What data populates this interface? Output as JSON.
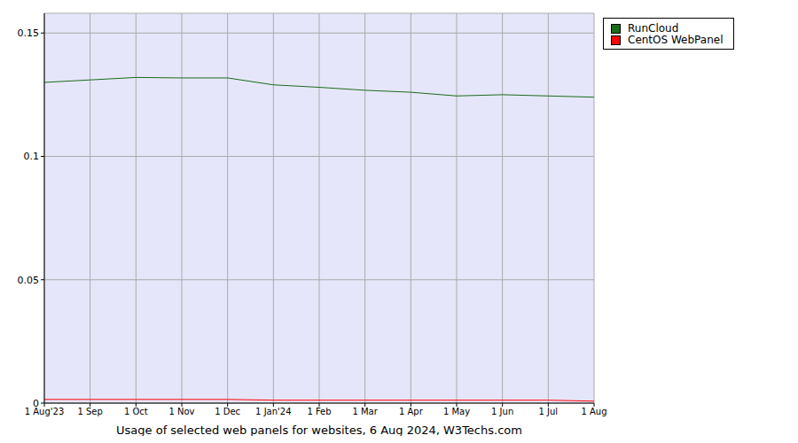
{
  "chart_data": {
    "type": "line",
    "title": "Usage of selected web panels for websites, 6 Aug 2024, W3Techs.com",
    "categories": [
      "1 Aug'23",
      "1 Sep",
      "1 Oct",
      "1 Nov",
      "1 Dec",
      "1 Jan'24",
      "1 Feb",
      "1 Mar",
      "1 Apr",
      "1 May",
      "1 Jun",
      "1 Jul",
      "1 Aug"
    ],
    "series": [
      {
        "name": "RunCloud",
        "color": "#1a6b1a",
        "values": [
          0.13,
          0.131,
          0.132,
          0.1318,
          0.1318,
          0.129,
          0.128,
          0.1268,
          0.126,
          0.1245,
          0.125,
          0.1245,
          0.124
        ]
      },
      {
        "name": "CentOS WebPanel",
        "color": "#ff0000",
        "values": [
          0.0015,
          0.0015,
          0.0015,
          0.0015,
          0.0015,
          0.0012,
          0.0012,
          0.0012,
          0.0012,
          0.0012,
          0.0012,
          0.0012,
          0.0008
        ]
      }
    ],
    "ylim": [
      0,
      0.158
    ],
    "yticks": [
      0,
      0.05,
      0.1,
      0.15
    ],
    "grid": true,
    "legend": "right"
  }
}
